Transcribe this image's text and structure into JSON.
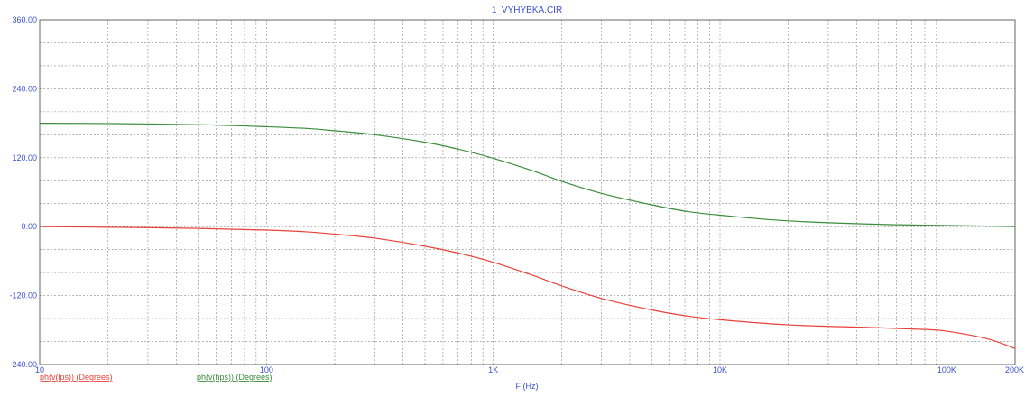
{
  "chart_data": {
    "type": "line",
    "title": "1_VYHYBKA.CIR",
    "xlabel": "F (Hz)",
    "x_scale": "log",
    "xlim": [
      10,
      200000
    ],
    "ylim": [
      -240,
      360
    ],
    "grid": true,
    "x_tick_labels": [
      {
        "value": 10,
        "label": "10"
      },
      {
        "value": 100,
        "label": "100"
      },
      {
        "value": 1000,
        "label": "1K"
      },
      {
        "value": 10000,
        "label": "10K"
      },
      {
        "value": 100000,
        "label": "100K"
      },
      {
        "value": 200000,
        "label": "200K"
      }
    ],
    "y_tick_labels": [
      {
        "value": 360,
        "label": "360.00"
      },
      {
        "value": 240,
        "label": "240.00"
      },
      {
        "value": 120,
        "label": "120.00"
      },
      {
        "value": 0,
        "label": "0.00"
      },
      {
        "value": -120,
        "label": "-120.00"
      },
      {
        "value": -240,
        "label": "-240.00"
      }
    ],
    "series": [
      {
        "name": "ph(v(lps)) (Degrees)",
        "color": "#e8413a",
        "x": [
          10,
          20,
          50,
          100,
          150,
          200,
          300,
          500,
          700,
          1000,
          1500,
          2000,
          3000,
          5000,
          7000,
          10000,
          20000,
          50000,
          80000,
          100000,
          150000,
          200000
        ],
        "y": [
          0,
          -1,
          -3,
          -6,
          -9,
          -13,
          -20,
          -34,
          -46,
          -62,
          -85,
          -103,
          -125,
          -145,
          -155,
          -162,
          -171,
          -176,
          -179,
          -182,
          -195,
          -212
        ]
      },
      {
        "name": "ph(v(hps)) (Degrees)",
        "color": "#3a8c3a",
        "x": [
          10,
          20,
          50,
          100,
          150,
          200,
          300,
          500,
          700,
          1000,
          1500,
          2000,
          3000,
          5000,
          7000,
          10000,
          20000,
          50000,
          100000,
          200000
        ],
        "y": [
          180,
          179.5,
          177.5,
          174,
          171,
          167,
          160,
          147,
          135,
          119,
          97,
          79,
          58,
          38,
          27,
          20,
          10,
          4,
          2,
          0
        ]
      }
    ]
  }
}
